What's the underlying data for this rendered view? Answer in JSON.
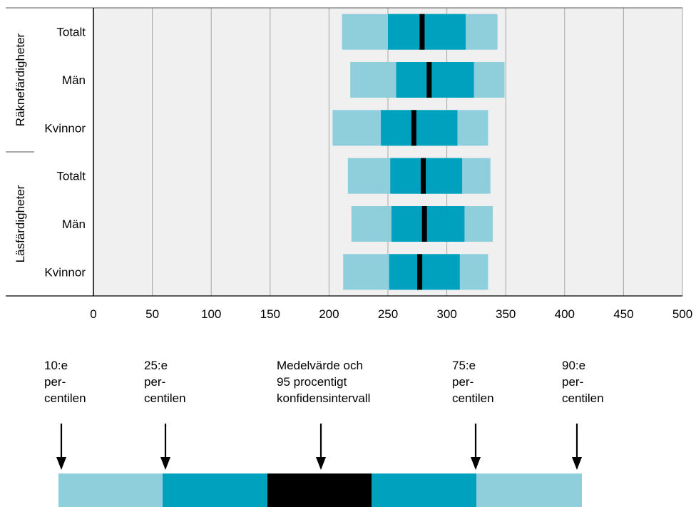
{
  "chart_data": {
    "type": "bar",
    "subtype": "horizontal percentile range bars",
    "xlim": [
      0,
      500
    ],
    "x_ticks": [
      "0",
      "50",
      "100",
      "150",
      "200",
      "250",
      "300",
      "350",
      "400",
      "450",
      "500"
    ],
    "grid": "vertical",
    "groups": [
      {
        "label": "Räknefärdigheter",
        "rows": [
          0,
          1,
          2
        ]
      },
      {
        "label": "Läsfärdigheter",
        "rows": [
          3,
          4,
          5
        ]
      }
    ],
    "rows": [
      {
        "label": "Totalt",
        "p10": 211,
        "p25": 250,
        "mean": 279,
        "p75": 316,
        "p90": 343
      },
      {
        "label": "Män",
        "p10": 218,
        "p25": 257,
        "mean": 285,
        "p75": 323,
        "p90": 349
      },
      {
        "label": "Kvinnor",
        "p10": 203,
        "p25": 244,
        "mean": 272,
        "p75": 309,
        "p90": 335
      },
      {
        "label": "Totalt",
        "p10": 216,
        "p25": 252,
        "mean": 280,
        "p75": 313,
        "p90": 337
      },
      {
        "label": "Män",
        "p10": 219,
        "p25": 253,
        "mean": 281,
        "p75": 315,
        "p90": 339
      },
      {
        "label": "Kvinnor",
        "p10": 212,
        "p25": 251,
        "mean": 277,
        "p75": 311,
        "p90": 335
      }
    ],
    "colors": {
      "outer": "#8fcfdc",
      "inner": "#00a0bf",
      "mean": "#000000",
      "background": "#f0f0f0",
      "grid": "#a6a6a6"
    }
  },
  "legend": {
    "labels": [
      [
        "10:e",
        "per-",
        "centilen"
      ],
      [
        "25:e",
        "per-",
        "centilen"
      ],
      [
        "Medelvärde och",
        "95 procentigt",
        "konfidensintervall"
      ],
      [
        "75:e",
        "per-",
        "centilen"
      ],
      [
        "90:e",
        "per-",
        "centilen"
      ]
    ],
    "segments": [
      "outer",
      "inner",
      "mean",
      "inner",
      "outer"
    ]
  }
}
